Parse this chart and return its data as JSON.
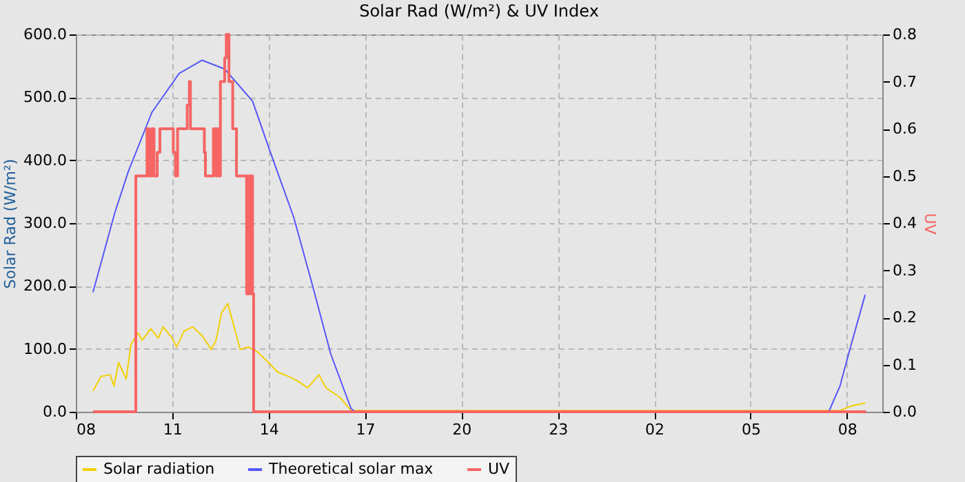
{
  "chart_data": {
    "type": "line",
    "title": "Solar Rad (W/m²) &  UV Index",
    "ylabel": "Solar Rad (W/m²)",
    "y2label": "UV",
    "xlim": [
      "--01-01T08:00",
      "--01-02T09:06"
    ],
    "xticks": [
      {
        "value": "--01-01T08:00",
        "label": "08"
      },
      {
        "value": "--01-01T11:00",
        "label": "11"
      },
      {
        "value": "--01-01T14:00",
        "label": "14"
      },
      {
        "value": "--01-01T17:00",
        "label": "17"
      },
      {
        "value": "--01-01T20:00",
        "label": "20"
      },
      {
        "value": "--01-01T23:00",
        "label": "23"
      },
      {
        "value": "--01-02T02:00",
        "label": "02"
      },
      {
        "value": "--01-02T05:00",
        "label": "05"
      },
      {
        "value": "--01-02T08:00",
        "label": "08"
      }
    ],
    "ylim": [
      0,
      600
    ],
    "yticks": [
      {
        "value": 0,
        "label": "0.0"
      },
      {
        "value": 100,
        "label": "100.0"
      },
      {
        "value": 200,
        "label": "200.0"
      },
      {
        "value": 300,
        "label": "300.0"
      },
      {
        "value": 400,
        "label": "400.0"
      },
      {
        "value": 500,
        "label": "500.0"
      },
      {
        "value": 600,
        "label": "600.0"
      }
    ],
    "y2lim": [
      0,
      0.8
    ],
    "y2ticks": [
      {
        "value": 0,
        "label": "0.0"
      },
      0.1,
      0.2,
      0.3,
      0.4,
      0.5,
      0.6,
      0.7,
      0.8
    ],
    "grid": true,
    "legend": "bottom",
    "marker": "none",
    "line_style": "solid",
    "series": [
      {
        "name": "Solar radiation",
        "color": "#f2cf00",
        "x": [
          "--01-01T08:32",
          "--01-01T08:47",
          "--01-01T09:04",
          "--01-01T09:11",
          "--01-01T09:20",
          "--01-01T09:28",
          "--01-01T09:34",
          "--01-01T09:43",
          "--01-01T09:56",
          "--01-01T10:04",
          "--01-01T10:20",
          "--01-01T10:34",
          "--01-01T10:43",
          "--01-01T11:00",
          "--01-01T11:08",
          "--01-01T11:22",
          "--01-01T11:38",
          "--01-01T11:56",
          "--01-01T12:13",
          "--01-01T12:22",
          "--01-01T12:32",
          "--01-01T12:44",
          "--01-01T12:52",
          "--01-01T13:07",
          "--01-01T13:22",
          "--01-01T13:38",
          "--01-01T14:00",
          "--01-01T14:17",
          "--01-01T14:38",
          "--01-01T14:56",
          "--01-01T15:13",
          "--01-01T15:34",
          "--01-01T15:47",
          "--01-01T16:13",
          "--01-01T16:34",
          "--01-02T07:47",
          "--01-02T08:08",
          "--01-02T08:34"
        ],
        "values": [
          33,
          56,
          59,
          41,
          78,
          63,
          52,
          107,
          125,
          114,
          132,
          117,
          135,
          117,
          103,
          128,
          135,
          121,
          99,
          114,
          157,
          172,
          146,
          99,
          103,
          96,
          78,
          63,
          56,
          48,
          38,
          59,
          38,
          23,
          2,
          2,
          9,
          14
        ]
      },
      {
        "name": "Theoretical solar max",
        "color": "#5555ff",
        "x": [
          "--01-01T08:32",
          "--01-01T09:13",
          "--01-01T09:38",
          "--01-01T10:22",
          "--01-01T11:13",
          "--01-01T11:56",
          "--01-01T12:38",
          "--01-01T13:30",
          "--01-01T14:04",
          "--01-01T14:47",
          "--01-01T15:22",
          "--01-01T15:56",
          "--01-01T16:34",
          "--01-01T16:42",
          "--01-02T07:26",
          "--01-02T07:47",
          "--01-02T08:08",
          "--01-02T08:34"
        ],
        "values": [
          190,
          317,
          382,
          476,
          538,
          559,
          545,
          494,
          411,
          309,
          201,
          92,
          5,
          0,
          0,
          41,
          107,
          186
        ]
      },
      {
        "name": "UV",
        "type": "step",
        "axis": "y2",
        "color": "#f76464",
        "x": [
          "--01-01T08:32",
          "--01-01T09:52",
          "--01-01T10:13",
          "--01-01T10:17",
          "--01-01T10:22",
          "--01-01T10:26",
          "--01-01T10:32",
          "--01-01T10:37",
          "--01-01T11:02",
          "--01-01T11:06",
          "--01-01T11:10",
          "--01-01T11:28",
          "--01-01T11:32",
          "--01-01T11:34",
          "--01-01T12:00",
          "--01-01T12:02",
          "--01-01T12:17",
          "--01-01T12:22",
          "--01-01T12:24",
          "--01-01T12:28",
          "--01-01T12:30",
          "--01-01T12:38",
          "--01-01T12:41",
          "--01-01T12:46",
          "--01-01T12:53",
          "--01-01T13:00",
          "--01-01T13:19",
          "--01-01T13:22",
          "--01-01T13:24",
          "--01-01T13:26",
          "--01-01T13:30",
          "--01-01T13:32",
          "--01-02T08:36"
        ],
        "values": [
          0,
          0.5,
          0.6,
          0.5,
          0.6,
          0.5,
          0.55,
          0.6,
          0.55,
          0.5,
          0.6,
          0.65,
          0.7,
          0.6,
          0.55,
          0.5,
          0.6,
          0.5,
          0.6,
          0.5,
          0.7,
          0.75,
          0.8,
          0.7,
          0.6,
          0.5,
          0.25,
          0.5,
          0.25,
          0.5,
          0.25,
          0,
          0
        ]
      }
    ]
  }
}
